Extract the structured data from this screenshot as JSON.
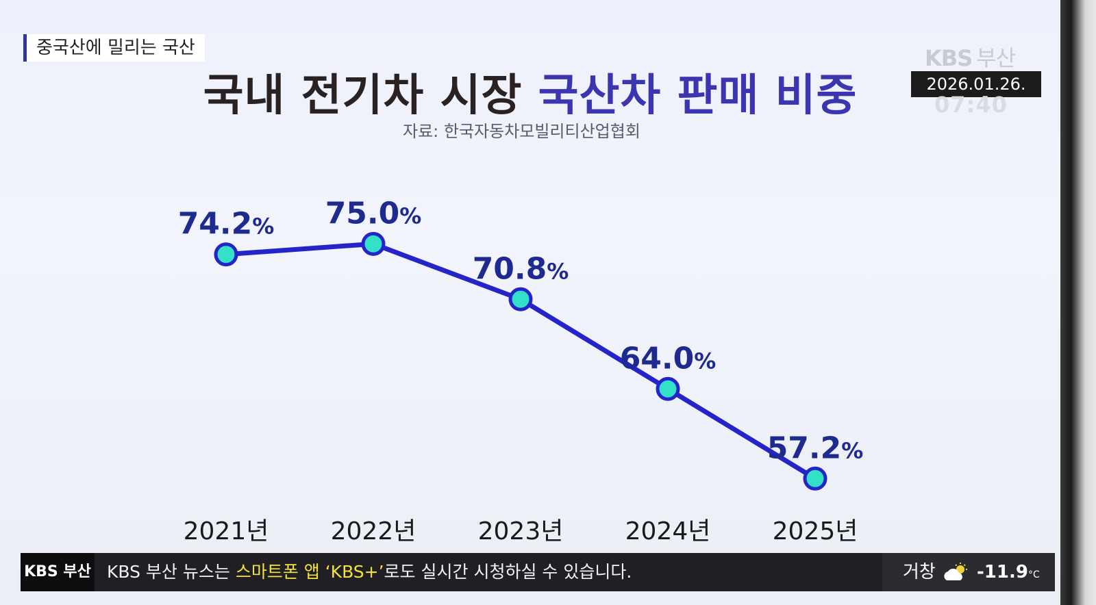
{
  "broadcast": {
    "topic": "중국산에 밀리는 국산",
    "headline_dark": "국내 전기차 시장",
    "headline_accent": "국산차 판매 비중",
    "source": "자료: 한국자동차모빌리티산업협회",
    "logo_main": "KBS",
    "logo_sub": "부산",
    "date": "2026.01.26.",
    "time": "07:40"
  },
  "ticker": {
    "logo": "KBS 부산",
    "text_before": "KBS 부산 뉴스는 ",
    "text_highlight": "스마트폰 앱 ‘KBS+’",
    "text_after": "로도 실시간 시청하실 수 있습니다.",
    "weather_city": "거창",
    "weather_icon": "partly-cloudy-icon",
    "weather_temp": "-11.9",
    "weather_unit": "°C"
  },
  "colors": {
    "line": "#2424c8",
    "marker_fill": "#33e0c8",
    "label": "#1f2a8f",
    "accent": "#3c35b0"
  },
  "chart_data": {
    "type": "line",
    "title": "국내 전기차 시장 국산차 판매 비중",
    "categories": [
      "2021년",
      "2022년",
      "2023년",
      "2024년",
      "2025년"
    ],
    "values": [
      74.2,
      75.0,
      70.8,
      64.0,
      57.2
    ],
    "data_labels": [
      "74.2",
      "75.0",
      "70.8",
      "64.0",
      "57.2"
    ],
    "unit": "%",
    "ylim": [
      50,
      80
    ],
    "grid": false,
    "legend": "none"
  }
}
